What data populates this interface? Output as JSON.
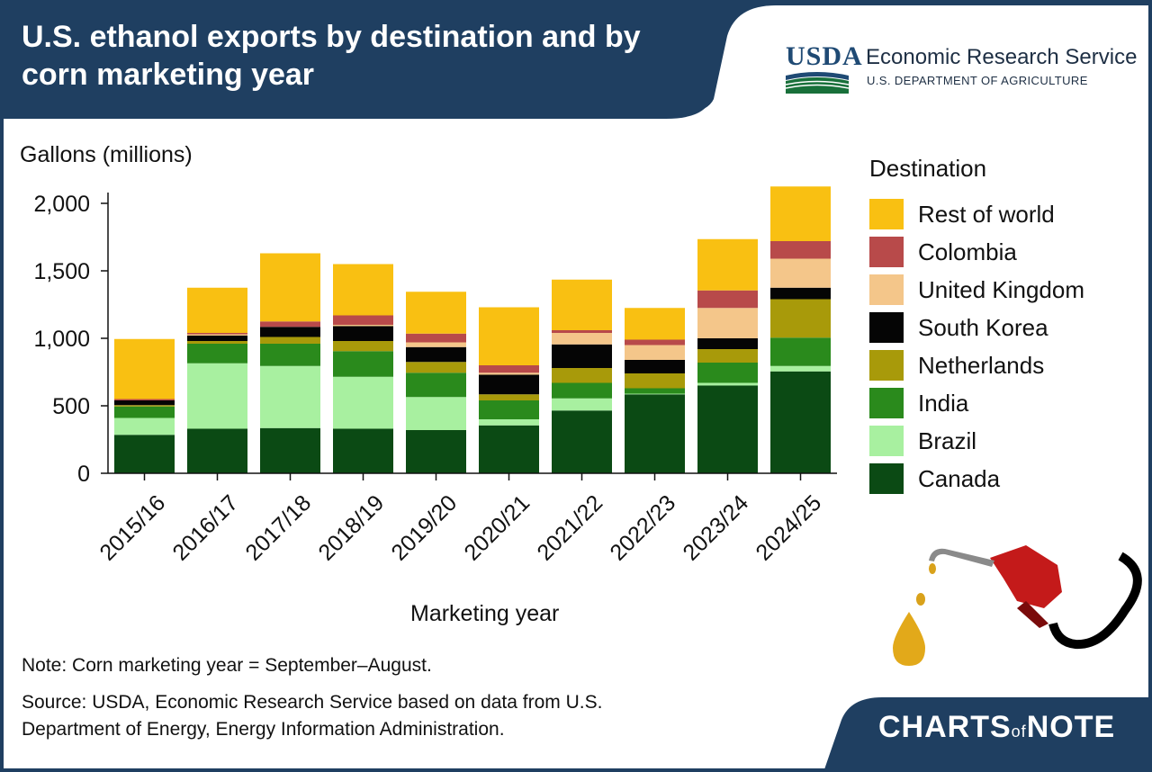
{
  "header": {
    "title": "U.S. ethanol exports by destination and by corn marketing year",
    "org_mark": "USDA",
    "org_name": "Economic Research Service",
    "org_dept": "U.S. DEPARTMENT OF AGRICULTURE"
  },
  "footer": {
    "note": "Note: Corn marketing year = September–August.",
    "source": "Source: USDA, Economic Research Service based on data from U.S. Department of Energy, Energy Information Administration.",
    "brand_part1": "CHARTS",
    "brand_part2": "of",
    "brand_part3": "NOTE"
  },
  "colors": {
    "header_bg": "#1f3f61",
    "Canada": "#0b4a14",
    "Brazil": "#a8f0a0",
    "India": "#2a8a1c",
    "Netherlands": "#a89a0a",
    "South Korea": "#050505",
    "United Kingdom": "#f4c68a",
    "Colombia": "#b84a4a",
    "Rest of world": "#f9c012"
  },
  "chart_data": {
    "type": "bar",
    "stacked": true,
    "unit_label": "Gallons (millions)",
    "xlabel": "Marketing year",
    "ylabel": "Gallons (millions)",
    "ylim": [
      0,
      2000
    ],
    "yticks": [
      0,
      500,
      1000,
      1500,
      2000
    ],
    "ytick_labels": [
      "0",
      "500",
      "1,000",
      "1,500",
      "2,000"
    ],
    "legend_title": "Destination",
    "legend_position": "right",
    "legend_order": [
      "Rest of world",
      "Colombia",
      "United Kingdom",
      "South Korea",
      "Netherlands",
      "India",
      "Brazil",
      "Canada"
    ],
    "categories": [
      "2015/16",
      "2016/17",
      "2017/18",
      "2018/19",
      "2019/20",
      "2020/21",
      "2021/22",
      "2022/23",
      "2023/24",
      "2024/25"
    ],
    "series": [
      {
        "name": "Canada",
        "values": [
          285,
          330,
          335,
          330,
          320,
          355,
          465,
          585,
          650,
          755
        ]
      },
      {
        "name": "Brazil",
        "values": [
          125,
          485,
          460,
          385,
          245,
          45,
          90,
          5,
          20,
          40
        ]
      },
      {
        "name": "India",
        "values": [
          85,
          145,
          165,
          190,
          180,
          140,
          115,
          40,
          150,
          210
        ]
      },
      {
        "name": "Netherlands",
        "values": [
          10,
          20,
          50,
          75,
          80,
          45,
          110,
          110,
          100,
          285
        ]
      },
      {
        "name": "South Korea",
        "values": [
          35,
          40,
          75,
          110,
          110,
          145,
          175,
          100,
          80,
          85
        ]
      },
      {
        "name": "United Kingdom",
        "values": [
          0,
          10,
          0,
          10,
          35,
          15,
          85,
          110,
          225,
          215
        ]
      },
      {
        "name": "Colombia",
        "values": [
          10,
          10,
          40,
          70,
          65,
          55,
          20,
          40,
          130,
          130
        ]
      },
      {
        "name": "Rest of world",
        "values": [
          445,
          335,
          505,
          380,
          310,
          430,
          375,
          235,
          380,
          405
        ]
      }
    ]
  }
}
